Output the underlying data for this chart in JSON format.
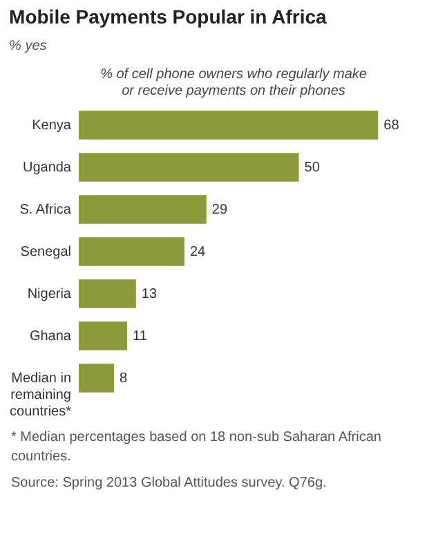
{
  "chart_data": {
    "type": "bar",
    "orientation": "horizontal",
    "title": "Mobile Payments  Popular in Africa",
    "subtitle": "% yes",
    "xlabel": "% of cell phone owners who regularly make or receive payments on their phones",
    "categories": [
      "Kenya",
      "Uganda",
      "S. Africa",
      "Senegal",
      "Nigeria",
      "Ghana",
      "Median in remaining countries*"
    ],
    "values": [
      68,
      50,
      29,
      24,
      13,
      11,
      8
    ],
    "color": "#8c9a3c",
    "data_labels": true,
    "grid": false,
    "annotations": [
      "* Median percentages based on 18 non-sub Saharan African countries.",
      "Source: Spring 2013 Global Attitudes survey. Q76g."
    ]
  }
}
